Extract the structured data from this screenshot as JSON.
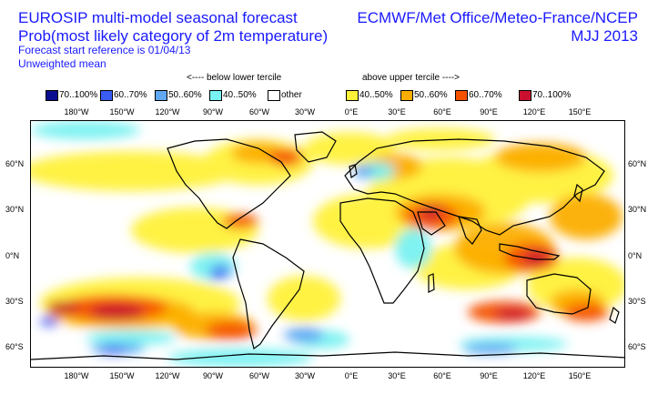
{
  "header": {
    "title_line1": "EUROSIP multi-model seasonal forecast",
    "title_line2": "Prob(most likely category of 2m temperature)",
    "start_ref": "Forecast start reference is 01/04/13",
    "mean_type": "Unweighted mean",
    "centres": "ECMWF/Met Office/Meteo-France/NCEP",
    "season": "MJJ 2013"
  },
  "legend": {
    "below_label": "<---- below lower tercile",
    "above_label": "above upper tercile ---->",
    "items": [
      {
        "label": "70..100%",
        "color": "#0a0d8f"
      },
      {
        "label": "60..70%",
        "color": "#3a5cf2"
      },
      {
        "label": "50..60%",
        "color": "#60a8f2"
      },
      {
        "label": "40..50%",
        "color": "#78f2f2"
      },
      {
        "label": "other",
        "color": "#ffffff"
      },
      {
        "label": "40..50%",
        "color": "#fff23a"
      },
      {
        "label": "50..60%",
        "color": "#fcae00"
      },
      {
        "label": "60..70%",
        "color": "#f55200"
      },
      {
        "label": "70..100%",
        "color": "#c9102f"
      }
    ]
  },
  "axes": {
    "longitudes": [
      "180°W",
      "150°W",
      "120°W",
      "90°W",
      "60°W",
      "30°W",
      "0°E",
      "30°E",
      "60°E",
      "90°E",
      "120°E",
      "150°E"
    ],
    "latitudes": [
      "60°N",
      "30°N",
      "0°N",
      "30°S",
      "60°S"
    ]
  }
}
